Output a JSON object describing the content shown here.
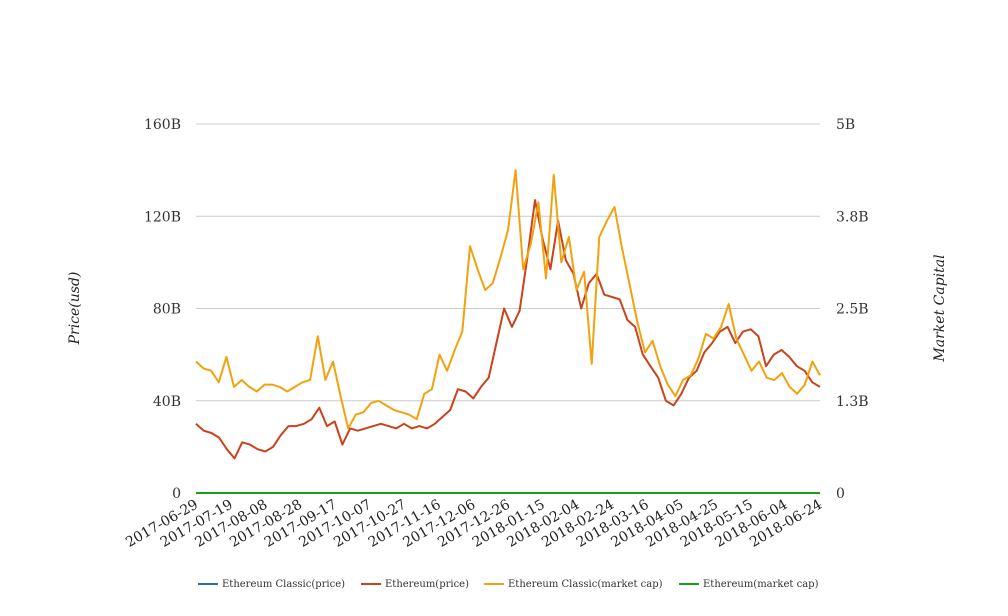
{
  "chart_data": {
    "type": "line",
    "y_left": {
      "label": "Price(usd)",
      "ticks": [
        "0",
        "40B",
        "80B",
        "120B",
        "160B"
      ],
      "lim": [
        0,
        160
      ]
    },
    "y_right": {
      "label": "Market Capital",
      "ticks": [
        "0",
        "1.3B",
        "2.5B",
        "3.8B",
        "5B"
      ],
      "lim": [
        0,
        5
      ]
    },
    "x_ticks": [
      "2017-06-29",
      "2017-07-19",
      "2017-08-08",
      "2017-08-28",
      "2017-09-17",
      "2017-10-07",
      "2017-10-27",
      "2017-11-16",
      "2017-12-06",
      "2017-12-26",
      "2018-01-15",
      "2018-02-04",
      "2018-02-24",
      "2018-03-16",
      "2018-04-05",
      "2018-04-25",
      "2018-05-15",
      "2018-06-04",
      "2018-06-24"
    ],
    "x_range": [
      "2017-06-29",
      "2018-06-29"
    ],
    "grid": true,
    "legend_position": "bottom",
    "series": [
      {
        "name": "Ethereum Classic(price)",
        "color": "#2f6eaa",
        "axis": "left",
        "values": [
          0,
          0,
          0,
          0,
          0,
          0,
          0,
          0,
          0,
          0,
          0,
          0,
          0,
          0,
          0,
          0,
          0,
          0,
          0,
          0,
          0,
          0,
          0,
          0,
          0,
          0,
          0,
          0,
          0,
          0,
          0,
          0,
          0,
          0,
          0,
          0,
          0,
          0,
          0,
          0,
          0,
          0,
          0,
          0,
          0,
          0,
          0,
          0,
          0,
          0,
          0,
          0,
          0
        ]
      },
      {
        "name": "Ethereum(price)",
        "color": "#c9431b",
        "axis": "left",
        "values": [
          30,
          27,
          26,
          24,
          19,
          15,
          22,
          21,
          19,
          18,
          20,
          25,
          29,
          29,
          30,
          32,
          37,
          29,
          31,
          21,
          28,
          27,
          28,
          29,
          30,
          29,
          28,
          30,
          28,
          29,
          28,
          30,
          33,
          36,
          45,
          44,
          41,
          46,
          50,
          65,
          80,
          72,
          79,
          102,
          127,
          110,
          97,
          118,
          101,
          95,
          80,
          91,
          95,
          86,
          85,
          84,
          75,
          72,
          60,
          55,
          50,
          40,
          38,
          43,
          50,
          53,
          61,
          65,
          70,
          72,
          65,
          70,
          71,
          68,
          55,
          60,
          62,
          59,
          55,
          53,
          48,
          46
        ]
      },
      {
        "name": "Ethereum Classic(market cap)",
        "color": "#f2a20f",
        "axis": "left",
        "values": [
          57,
          54,
          53,
          48,
          59,
          46,
          49,
          46,
          44,
          47,
          47,
          46,
          44,
          46,
          48,
          49,
          68,
          49,
          57,
          42,
          28,
          34,
          35,
          39,
          40,
          38,
          36,
          35,
          34,
          32,
          43,
          45,
          60,
          53,
          62,
          70,
          107,
          97,
          88,
          91,
          102,
          114,
          140,
          97,
          108,
          126,
          93,
          138,
          100,
          111,
          88,
          96,
          56,
          111,
          118,
          124,
          106,
          90,
          74,
          61,
          66,
          55,
          47,
          42,
          49,
          51,
          58,
          69,
          67,
          72,
          82,
          67,
          60,
          53,
          57,
          50,
          49,
          52,
          46,
          43,
          47,
          57,
          51
        ]
      },
      {
        "name": "Ethereum(market cap)",
        "color": "#1a9e1a",
        "axis": "left",
        "values": [
          0,
          0,
          0,
          0,
          0,
          0,
          0,
          0,
          0,
          0,
          0,
          0,
          0,
          0,
          0,
          0,
          0,
          0,
          0,
          0,
          0,
          0,
          0,
          0,
          0,
          0,
          0,
          0,
          0,
          0,
          0,
          0,
          0,
          0,
          0,
          0,
          0,
          0,
          0,
          0,
          0,
          0,
          0,
          0,
          0,
          0,
          0,
          0,
          0,
          0,
          0,
          0,
          0
        ]
      }
    ]
  }
}
